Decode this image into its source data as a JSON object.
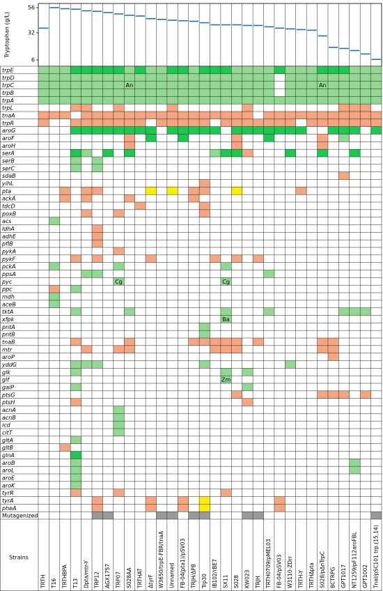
{
  "chart_data": {
    "type": "level",
    "y_label": "Tryptophan (g/L)",
    "categories": [
      "TRTH",
      "T16",
      "TRTHBPA",
      "T13",
      "Dpta/mtr-Y",
      "TRP12",
      "AGX1757",
      "TRP07",
      "S028AA",
      "TRTHAT",
      "ΔtyrF",
      "W3650/trpE-FBR/tnaA",
      "Unnamed",
      "FB-04(pta1)/pSV03",
      "TRJH/ΔPB",
      "Trp30",
      "IB102/rBE7",
      "SX11",
      "S028",
      "KW023",
      "TRJH",
      "TRTH0709/pMEL03",
      "FB-04/pSV03",
      "W3110-ZDrr",
      "TRTH-Y",
      "TRTHΔpta",
      "S028/pΔnTrpC",
      "BCTRPG",
      "GPT1017",
      "NT1259/pF112aroFBL",
      "GPT1002",
      "TnaI/pSC101 trp.(15,14)"
    ],
    "values": [
      36.4,
      56,
      55,
      54.5,
      53,
      52.5,
      51.3,
      50,
      48.7,
      48,
      45.5,
      44.8,
      44,
      43.5,
      43,
      41.6,
      39.6,
      39.6,
      39.6,
      39,
      39,
      37.7,
      36.4,
      35.7,
      35,
      34.4,
      29,
      18,
      17,
      15,
      11.7,
      6.5
    ],
    "color": "#2a6ea6",
    "ylim": [
      0,
      60
    ],
    "yticks": [
      6,
      32,
      56
    ]
  },
  "matrix": {
    "column_header": "Strains",
    "colors": {
      "g": "#92d892",
      "G": "#1ec850",
      "o": "#f4a582",
      "y": "#ffee00",
      "k": "#9a9a9a"
    },
    "rows": [
      {
        "gene": "trpE",
        "cells": "gggGGGGGgGggGGgGGGggggGgggGGGggg"
      },
      {
        "gene": "trpD",
        "cells": "gggggggggggggggggggggg.ggggggggg"
      },
      {
        "gene": "trpC",
        "cells": "gggggggggggggggggggggg.ggggggggg",
        "notes": {
          "8": "An",
          "26": "An"
        }
      },
      {
        "gene": "trpB",
        "cells": "gggggggggggggggggggggg.ggggggggg"
      },
      {
        "gene": "trpA",
        "cells": "gggggggggggggggggggggggggggggggg"
      },
      {
        "gene": "trpL",
        "cells": "...oo..o....o......o........ooo."
      },
      {
        "gene": "tnaA",
        "cells": "ooo.oooooooooooooooo.ooooooooooo"
      },
      {
        "gene": "trpR",
        "cells": "o..ooooooo.ooooo.ooooooo.ooooooo"
      },
      {
        "gene": "aroG",
        "cells": "...GGGGGGGG.GGGGG.GGGGGGG..GGG.G"
      },
      {
        "gene": "aroF",
        "cells": "........o.G..G....o..G....o.g..."
      },
      {
        "gene": "aroH",
        "cells": "........o.........o.......o....."
      },
      {
        "gene": "serA",
        "cells": "...Gg.G.G.......gGGo...G..G..G.."
      },
      {
        "gene": "serB",
        "cells": "...g.g.........................."
      },
      {
        "gene": "serC",
        "cells": "...g.g.........................."
      },
      {
        "gene": "sdaB",
        "cells": "............................o..."
      },
      {
        "gene": "yihL",
        "cells": "...............o................"
      },
      {
        "gene": "pta",
        "cells": "..o.oo....y.y.oo..y.....o......."
      },
      {
        "gene": "ackA",
        "cells": "..o.o...o.....o................."
      },
      {
        "gene": "tdcD",
        "cells": ".........o.....o................"
      },
      {
        "gene": "poxB",
        "cells": "....o..o.......o................"
      },
      {
        "gene": "acs",
        "cells": ".g.............................."
      },
      {
        "gene": "ldhA",
        "cells": ".....o.........................."
      },
      {
        "gene": "adhE",
        "cells": ".....o.........................."
      },
      {
        "gene": "pflB",
        "cells": ".....o.........................."
      },
      {
        "gene": "pykA",
        "cells": ".......o........................"
      },
      {
        "gene": "pykF",
        "cells": "...o.o....o.....o.o.o..........."
      },
      {
        "gene": "pckA",
        "cells": ".g.....g.........g.............."
      },
      {
        "gene": "ppsA",
        "cells": "....gg...............g.........."
      },
      {
        "gene": "pyc",
        "cells": ".......g.........g..............",
        "notes": {
          "7": "Cg",
          "17": "Cg"
        }
      },
      {
        "gene": "ppc",
        "cells": ".o.g............................"
      },
      {
        "gene": "mdh",
        "cells": ".g.............................."
      },
      {
        "gene": "aceB",
        "cells": ".g.............................."
      },
      {
        "gene": "tktA",
        "cells": "...g....g........g...g......ggg."
      },
      {
        "gene": "xfpk",
        "cells": ".................g..............",
        "notes": {
          "17": "Ba"
        }
      },
      {
        "gene": "pntA",
        "cells": "...............g................"
      },
      {
        "gene": "pntB",
        "cells": "...............g................"
      },
      {
        "gene": "tnaB",
        "cells": "...o....o.....ooooo.o.....oo...."
      },
      {
        "gene": "mtr",
        "cells": "....o..oo.......ooo.......oo...."
      },
      {
        "gene": "aroP",
        "cells": "...........................o...."
      },
      {
        "gene": "yddG",
        "cells": "...ggg.........g.......g........"
      },
      {
        "gene": "glk",
        "cells": "...g.............g.g............"
      },
      {
        "gene": "glf",
        "cells": ".................g..............",
        "notes": {
          "17": "Zm"
        }
      },
      {
        "gene": "galP",
        "cells": "...g...............g............"
      },
      {
        "gene": "ptsG",
        "cells": "..................o.......ooo.o."
      },
      {
        "gene": "ptsH",
        "cells": "...o...............o............"
      },
      {
        "gene": "acnA",
        "cells": ".......g........................"
      },
      {
        "gene": "acnB",
        "cells": ".......g........................"
      },
      {
        "gene": "icd",
        "cells": ".......g........................"
      },
      {
        "gene": "citT",
        "cells": ".......g........................"
      },
      {
        "gene": "gltA",
        "cells": "...g............................"
      },
      {
        "gene": "gltB",
        "cells": "..o............................."
      },
      {
        "gene": "glnA",
        "cells": "...G............................"
      },
      {
        "gene": "aroB",
        "cells": "...g.........................g.."
      },
      {
        "gene": "aroL",
        "cells": "...g.........................g.."
      },
      {
        "gene": "aroE",
        "cells": "...g............................"
      },
      {
        "gene": "aroK",
        "cells": "...g............................"
      },
      {
        "gene": "tyrR",
        "cells": "...o...o.........o.............."
      },
      {
        "gene": "tyrA",
        "cells": ".....o....o..o.y......o........."
      },
      {
        "gene": "pheA",
        "cells": ".....o....o..o.y......o........."
      },
      {
        "gene": "Mutagenized",
        "cells": ".....kk....kk.kk...kk..........k",
        "plain": true
      }
    ]
  }
}
